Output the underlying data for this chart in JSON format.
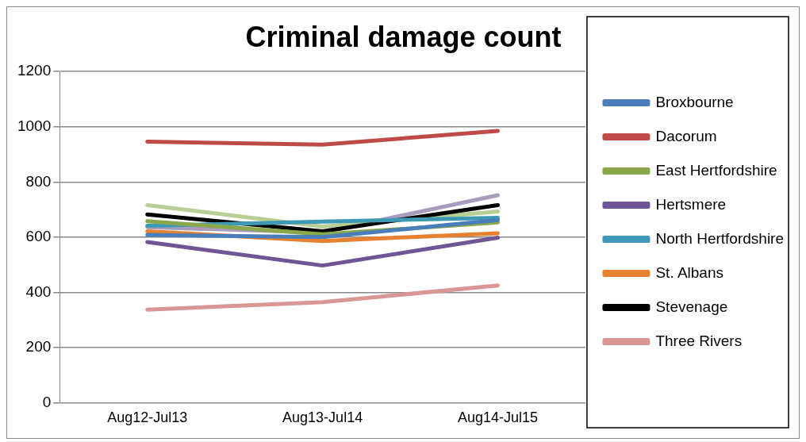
{
  "chart_data": {
    "type": "line",
    "title": "Criminal damage count",
    "categories": [
      "Aug12-Jul13",
      "Aug13-Jul14",
      "Aug14-Jul15"
    ],
    "series": [
      {
        "name": "Broxbourne",
        "color": "#4a7ebb",
        "values": [
          608,
          600,
          662
        ]
      },
      {
        "name": "Dacorum",
        "color": "#be4b48",
        "values": [
          946,
          935,
          985
        ]
      },
      {
        "name": "East Hertfordshire",
        "color": "#8aa84a",
        "values": [
          658,
          610,
          653
        ]
      },
      {
        "name": "Hertsmere",
        "color": "#6f5496",
        "values": [
          582,
          497,
          598
        ]
      },
      {
        "name": "North Hertfordshire",
        "color": "#3e9ab4",
        "values": [
          641,
          656,
          670
        ]
      },
      {
        "name": "St. Albans",
        "color": "#e6812f",
        "values": [
          621,
          586,
          614
        ]
      },
      {
        "name": "Stevenage",
        "color": "#000000",
        "values": [
          682,
          621,
          716
        ]
      },
      {
        "name": "Three Rivers",
        "color": "#d99694",
        "values": [
          337,
          364,
          425
        ]
      },
      {
        "color": "#b7cf94",
        "values": [
          716,
          638,
          693
        ]
      },
      {
        "color": "#a99bbd",
        "values": [
          636,
          617,
          752
        ]
      }
    ],
    "ylim": [
      0,
      1200
    ],
    "yticks": [
      0,
      200,
      400,
      600,
      800,
      1000,
      1200
    ],
    "grid": "y",
    "legend": "right",
    "marker": "none",
    "line_style": "solid"
  }
}
